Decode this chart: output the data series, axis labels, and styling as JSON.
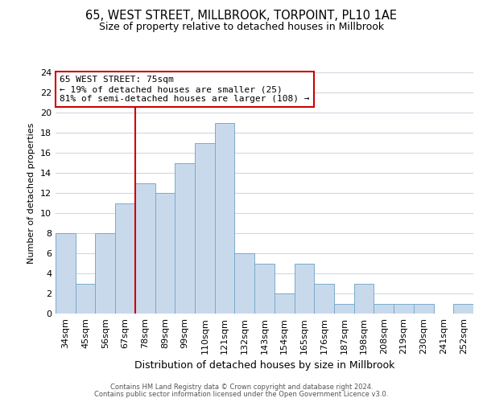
{
  "title": "65, WEST STREET, MILLBROOK, TORPOINT, PL10 1AE",
  "subtitle": "Size of property relative to detached houses in Millbrook",
  "xlabel": "Distribution of detached houses by size in Millbrook",
  "ylabel": "Number of detached properties",
  "bins": [
    "34sqm",
    "45sqm",
    "56sqm",
    "67sqm",
    "78sqm",
    "89sqm",
    "99sqm",
    "110sqm",
    "121sqm",
    "132sqm",
    "143sqm",
    "154sqm",
    "165sqm",
    "176sqm",
    "187sqm",
    "198sqm",
    "208sqm",
    "219sqm",
    "230sqm",
    "241sqm",
    "252sqm"
  ],
  "counts": [
    8,
    3,
    8,
    11,
    13,
    12,
    15,
    17,
    19,
    6,
    5,
    2,
    5,
    3,
    1,
    3,
    1,
    1,
    1,
    0,
    1
  ],
  "bar_color": "#c9d9ec",
  "bar_edge_color": "#7aaaca",
  "vline_x_index": 4,
  "vline_color": "#cc0000",
  "annotation_line1": "65 WEST STREET: 75sqm",
  "annotation_line2": "← 19% of detached houses are smaller (25)",
  "annotation_line3": "81% of semi-detached houses are larger (108) →",
  "annotation_box_color": "white",
  "annotation_box_edge_color": "#cc0000",
  "ylim": [
    0,
    24
  ],
  "yticks": [
    0,
    2,
    4,
    6,
    8,
    10,
    12,
    14,
    16,
    18,
    20,
    22,
    24
  ],
  "footer_line1": "Contains HM Land Registry data © Crown copyright and database right 2024.",
  "footer_line2": "Contains public sector information licensed under the Open Government Licence v3.0.",
  "background_color": "#ffffff",
  "grid_color": "#d0d8e0",
  "title_fontsize": 10.5,
  "subtitle_fontsize": 9,
  "ylabel_fontsize": 8,
  "xlabel_fontsize": 9,
  "tick_fontsize": 8,
  "annotation_fontsize": 8,
  "footer_fontsize": 6
}
